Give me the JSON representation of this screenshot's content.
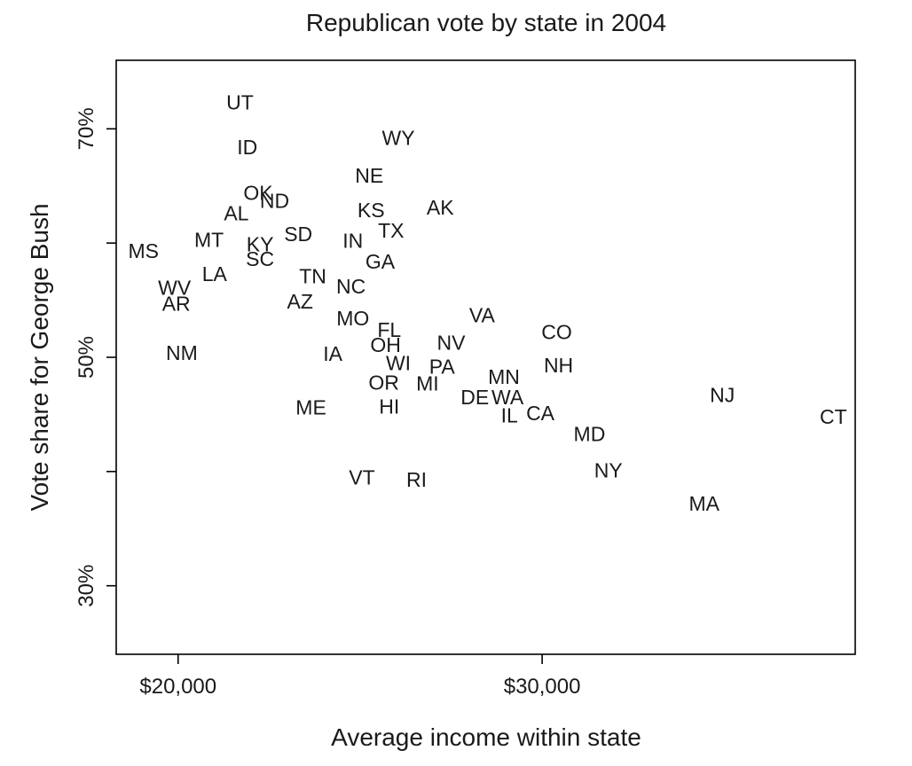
{
  "chart_data": {
    "type": "scatter",
    "title": "Republican vote by state in 2004",
    "xlabel": "Average income within state",
    "ylabel": "Vote share for George Bush",
    "xlim": [
      18300,
      38600
    ],
    "ylim": [
      24,
      76
    ],
    "xticks": [
      {
        "value": 20000,
        "label": "$20,000"
      },
      {
        "value": 30000,
        "label": "$30,000"
      }
    ],
    "yticks": [
      {
        "value": 30,
        "label": "30%"
      },
      {
        "value": 40,
        "label": ""
      },
      {
        "value": 50,
        "label": "50%"
      },
      {
        "value": 60,
        "label": ""
      },
      {
        "value": 70,
        "label": "70%"
      }
    ],
    "grid": false,
    "legend": "none",
    "points": [
      {
        "label": "UT",
        "x": 21700,
        "y": 72.3
      },
      {
        "label": "ID",
        "x": 21900,
        "y": 68.4
      },
      {
        "label": "WY",
        "x": 26050,
        "y": 69.2
      },
      {
        "label": "NE",
        "x": 25250,
        "y": 65.9
      },
      {
        "label": "OK",
        "x": 22200,
        "y": 64.4
      },
      {
        "label": "ND",
        "x": 22650,
        "y": 63.7
      },
      {
        "label": "AL",
        "x": 21600,
        "y": 62.6
      },
      {
        "label": "KS",
        "x": 25300,
        "y": 62.9
      },
      {
        "label": "AK",
        "x": 27200,
        "y": 63.1
      },
      {
        "label": "TX",
        "x": 25850,
        "y": 61.1
      },
      {
        "label": "SD",
        "x": 23300,
        "y": 60.8
      },
      {
        "label": "MT",
        "x": 20850,
        "y": 60.3
      },
      {
        "label": "KY",
        "x": 22250,
        "y": 59.9
      },
      {
        "label": "IN",
        "x": 24800,
        "y": 60.2
      },
      {
        "label": "MS",
        "x": 19050,
        "y": 59.3
      },
      {
        "label": "SC",
        "x": 22250,
        "y": 58.6
      },
      {
        "label": "GA",
        "x": 25550,
        "y": 58.4
      },
      {
        "label": "LA",
        "x": 21000,
        "y": 57.3
      },
      {
        "label": "TN",
        "x": 23700,
        "y": 57.1
      },
      {
        "label": "NC",
        "x": 24750,
        "y": 56.2
      },
      {
        "label": "WV",
        "x": 19900,
        "y": 56.1
      },
      {
        "label": "AR",
        "x": 19950,
        "y": 54.7
      },
      {
        "label": "AZ",
        "x": 23350,
        "y": 54.9
      },
      {
        "label": "VA",
        "x": 28350,
        "y": 53.7
      },
      {
        "label": "MO",
        "x": 24800,
        "y": 53.4
      },
      {
        "label": "FL",
        "x": 25800,
        "y": 52.4
      },
      {
        "label": "CO",
        "x": 30400,
        "y": 52.2
      },
      {
        "label": "OH",
        "x": 25700,
        "y": 51.1
      },
      {
        "label": "NV",
        "x": 27500,
        "y": 51.3
      },
      {
        "label": "NM",
        "x": 20100,
        "y": 50.4
      },
      {
        "label": "IA",
        "x": 24250,
        "y": 50.3
      },
      {
        "label": "WI",
        "x": 26050,
        "y": 49.5
      },
      {
        "label": "PA",
        "x": 27250,
        "y": 49.2
      },
      {
        "label": "NH",
        "x": 30450,
        "y": 49.3
      },
      {
        "label": "MN",
        "x": 28950,
        "y": 48.3
      },
      {
        "label": "OR",
        "x": 25650,
        "y": 47.8
      },
      {
        "label": "MI",
        "x": 26850,
        "y": 47.7
      },
      {
        "label": "NJ",
        "x": 34950,
        "y": 46.7
      },
      {
        "label": "DE",
        "x": 28150,
        "y": 46.5
      },
      {
        "label": "WA",
        "x": 29050,
        "y": 46.5
      },
      {
        "label": "HI",
        "x": 25800,
        "y": 45.7
      },
      {
        "label": "ME",
        "x": 23650,
        "y": 45.6
      },
      {
        "label": "CA",
        "x": 29950,
        "y": 45.1
      },
      {
        "label": "IL",
        "x": 29100,
        "y": 44.9
      },
      {
        "label": "CT",
        "x": 38000,
        "y": 44.8
      },
      {
        "label": "MD",
        "x": 31300,
        "y": 43.3
      },
      {
        "label": "NY",
        "x": 31820,
        "y": 40.1
      },
      {
        "label": "VT",
        "x": 25050,
        "y": 39.5
      },
      {
        "label": "RI",
        "x": 26550,
        "y": 39.3
      },
      {
        "label": "MA",
        "x": 34450,
        "y": 37.2
      }
    ]
  }
}
